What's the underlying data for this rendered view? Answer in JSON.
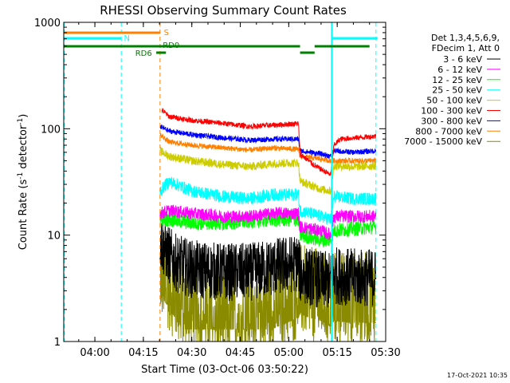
{
  "chart_data": {
    "type": "line",
    "title": "RHESSI Observing Summary Count Rates",
    "xlabel": "Start Time (03-Oct-06 03:50:22)",
    "ylabel_main": "Count Rate (s",
    "ylabel_sup1": "-1",
    "ylabel_mid": " detector",
    "ylabel_sup2": "-1",
    "ylabel_end": ")",
    "y_scale": "log",
    "ylim": [
      1,
      1000
    ],
    "xlim": [
      "03:50:22",
      "05:30"
    ],
    "x_ticks": [
      "04:00",
      "04:15",
      "04:30",
      "04:45",
      "05:00",
      "05:15",
      "05:30"
    ],
    "y_ticks": [
      "1",
      "10",
      "100",
      "1000"
    ],
    "legend_header": [
      "Det 1,3,4,5,6,9,",
      "FDecim 1, Att 0"
    ],
    "legend_placement": "right",
    "timestamp": "17-Oct-2021 10:35",
    "series": [
      {
        "name": "3 - 6 keV",
        "color": "#000000"
      },
      {
        "name": "6 - 12 keV",
        "color": "#ff00ff"
      },
      {
        "name": "12 - 25 keV",
        "color": "#00ff00"
      },
      {
        "name": "25 - 50 keV",
        "color": "#00ffff"
      },
      {
        "name": "50 - 100 keV",
        "color": "#cccc00"
      },
      {
        "name": "100 - 300 keV",
        "color": "#ff0000"
      },
      {
        "name": "300 - 800 keV",
        "color": "#0000ff"
      },
      {
        "name": "800 - 7000 keV",
        "color": "#ff8000"
      },
      {
        "name": "7000 - 15000 keV",
        "color": "#8b8b00"
      }
    ],
    "flag_labels": {
      "saa": "S",
      "night": "N",
      "rd0": "RD0",
      "rd6": "RD6"
    }
  }
}
